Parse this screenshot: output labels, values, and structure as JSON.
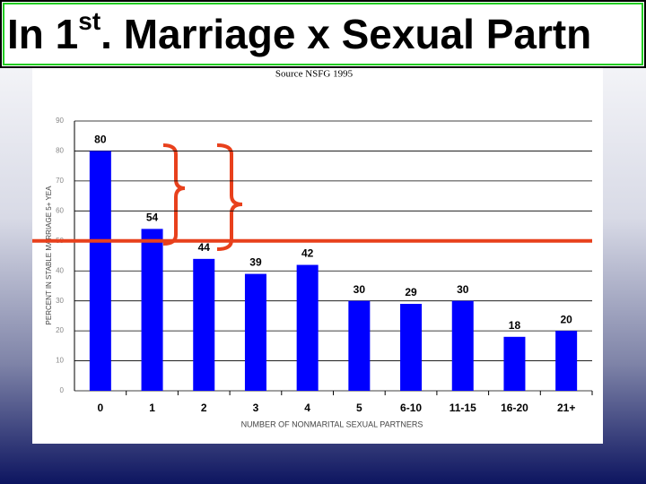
{
  "title": [
    "In 1",
    "st",
    ". Marriage x Sexual Partn"
  ],
  "chart_data": {
    "type": "bar",
    "subtitle": "Source NSFG 1995",
    "y_label": "PERCENT IN STABLE MARRIAGE 5+ YEA",
    "x_label": "NUMBER OF NONMARITAL SEXUAL PARTNERS",
    "categories": [
      "0",
      "1",
      "2",
      "3",
      "4",
      "5",
      "6-10",
      "11-15",
      "16-20",
      "21+"
    ],
    "values": [
      80,
      54,
      44,
      39,
      42,
      30,
      29,
      30,
      18,
      20
    ],
    "color": "#0000ff",
    "ylim": [
      0,
      90
    ],
    "yticks": [
      0,
      10,
      20,
      30,
      40,
      50,
      60,
      70,
      80,
      90
    ],
    "grid": true,
    "reference_line": {
      "value": 50,
      "color": "#e8401c"
    }
  }
}
